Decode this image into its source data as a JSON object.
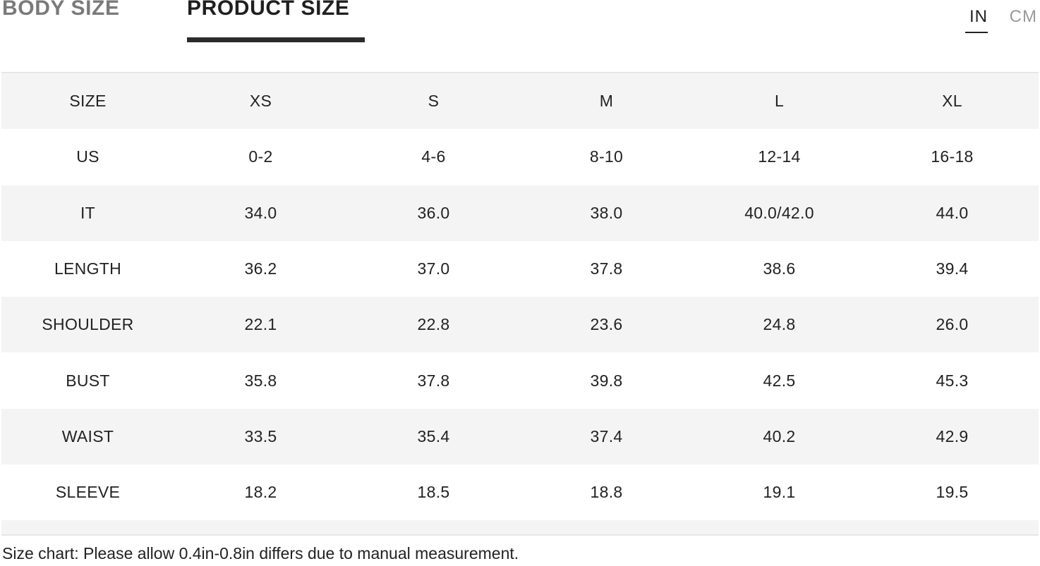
{
  "tabs": {
    "body_size": "BODY SIZE",
    "product_size": "PRODUCT SIZE",
    "active": "product_size"
  },
  "units": {
    "in": "IN",
    "cm": "CM",
    "active": "in"
  },
  "table": {
    "header": [
      "SIZE",
      "XS",
      "S",
      "M",
      "L",
      "XL"
    ],
    "rows": [
      [
        "US",
        "0-2",
        "4-6",
        "8-10",
        "12-14",
        "16-18"
      ],
      [
        "IT",
        "34.0",
        "36.0",
        "38.0",
        "40.0/42.0",
        "44.0"
      ],
      [
        "LENGTH",
        "36.2",
        "37.0",
        "37.8",
        "38.6",
        "39.4"
      ],
      [
        "SHOULDER",
        "22.1",
        "22.8",
        "23.6",
        "24.8",
        "26.0"
      ],
      [
        "BUST",
        "35.8",
        "37.8",
        "39.8",
        "42.5",
        "45.3"
      ],
      [
        "WAIST",
        "33.5",
        "35.4",
        "37.4",
        "40.2",
        "42.9"
      ],
      [
        "SLEEVE",
        "18.2",
        "18.5",
        "18.8",
        "19.1",
        "19.5"
      ]
    ]
  },
  "footnote": "Size chart: Please allow 0.4in-0.8in differs due to manual measurement.",
  "colors": {
    "active_text": "#1f1f1f",
    "inactive_text": "#7a7a7a",
    "row_shaded": "#f4f4f4",
    "row_white": "#ffffff"
  }
}
